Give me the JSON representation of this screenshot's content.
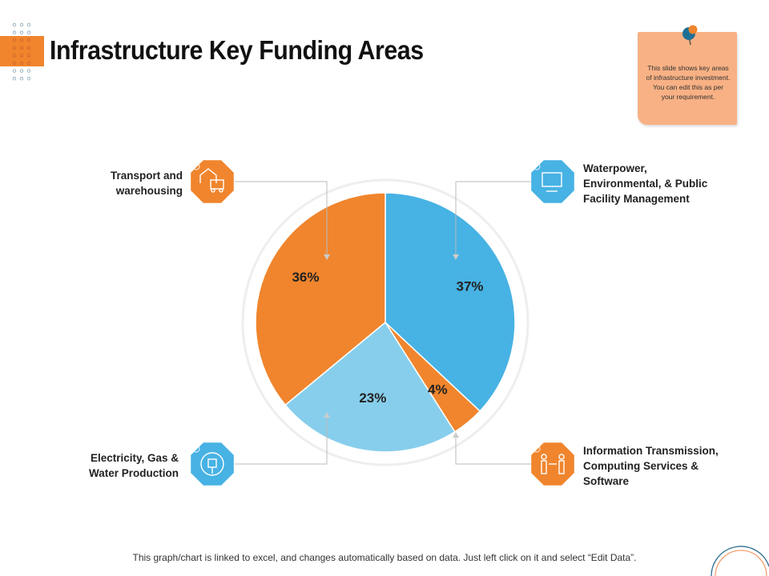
{
  "title": "Infrastructure Key Funding Areas",
  "note": {
    "text": "This slide shows key areas of infrastructure investment. You can edit this as per your requirement.",
    "icon": "pushpin-icon"
  },
  "footer": "This graph/chart is linked to excel, and changes automatically based on data. Just left click on it and select “Edit Data”.",
  "colors": {
    "orange": "#f0852d",
    "blue": "#47b2e4",
    "light_blue": "#87ceec"
  },
  "chart_data": {
    "type": "pie",
    "slices": [
      {
        "label": "Waterpower, Environmental, & Public Facility Management",
        "value": 37,
        "data_label": "37%",
        "color": "#47b2e4",
        "icon": "monitor-icon"
      },
      {
        "label": "Information Transmission, Computing Services & Software",
        "value": 4,
        "data_label": "4%",
        "color": "#f0852d",
        "icon": "data-transfer-people-icon"
      },
      {
        "label": "Electricity, Gas & Water Production",
        "value": 23,
        "data_label": "23%",
        "color": "#87ceec",
        "icon": "power-plug-icon"
      },
      {
        "label": "Transport and warehousing",
        "value": 36,
        "data_label": "36%",
        "color": "#f0852d",
        "icon": "warehouse-truck-icon"
      }
    ]
  }
}
